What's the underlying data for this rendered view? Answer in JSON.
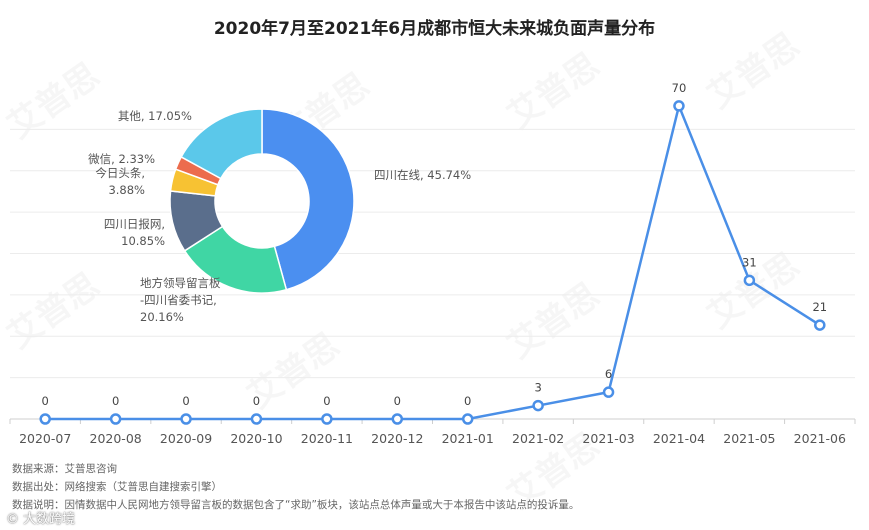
{
  "title": "2020年7月至2021年6月成都市恒大未来城负面声量分布",
  "chart_data": [
    {
      "type": "line",
      "categories": [
        "2020-07",
        "2020-08",
        "2020-09",
        "2020-10",
        "2020-11",
        "2020-12",
        "2021-01",
        "2021-02",
        "2021-03",
        "2021-04",
        "2021-05",
        "2021-06"
      ],
      "series": [
        {
          "values": [
            0,
            0,
            0,
            0,
            0,
            0,
            0,
            3,
            6,
            70,
            31,
            21
          ]
        }
      ],
      "ylim": [
        0,
        74
      ],
      "grid": true,
      "color": "#4a8fe7",
      "data_labels": true
    },
    {
      "type": "pie",
      "donut": true,
      "slices": [
        {
          "label": "四川在线",
          "value": 45.74,
          "text": "四川在线, 45.74%",
          "color": "#4b8ff0"
        },
        {
          "label": "地方领导留言板-四川省委书记",
          "value": 20.16,
          "lines": [
            "地方领导留言板",
            "-四川省委书记,",
            "20.16%"
          ],
          "color": "#40d6a4"
        },
        {
          "label": "四川日报网",
          "value": 10.85,
          "lines": [
            "四川日报网,",
            "10.85%"
          ],
          "color": "#5a6e8c"
        },
        {
          "label": "今日头条",
          "value": 3.88,
          "lines": [
            "今日头条,",
            "3.88%"
          ],
          "color": "#f7c233"
        },
        {
          "label": "微信",
          "value": 2.33,
          "lines": [
            "微信, 2.33%"
          ],
          "color": "#ec6c4d"
        },
        {
          "label": "其他",
          "value": 17.05,
          "lines": [
            "其他, 17.05%"
          ],
          "color": "#5bc8ea"
        }
      ]
    }
  ],
  "footnotes": [
    "数据来源：艾普思咨询",
    "数据出处：网络搜索（艾普思自建搜索引擎）",
    "数据说明：因情数据中人民网地方领导留言板的数据包含了“求助”板块，该站点总体声量或大于本报告中该站点的投诉量。"
  ],
  "watermark": "艾普思",
  "corner_logo": "© 大数跨境"
}
